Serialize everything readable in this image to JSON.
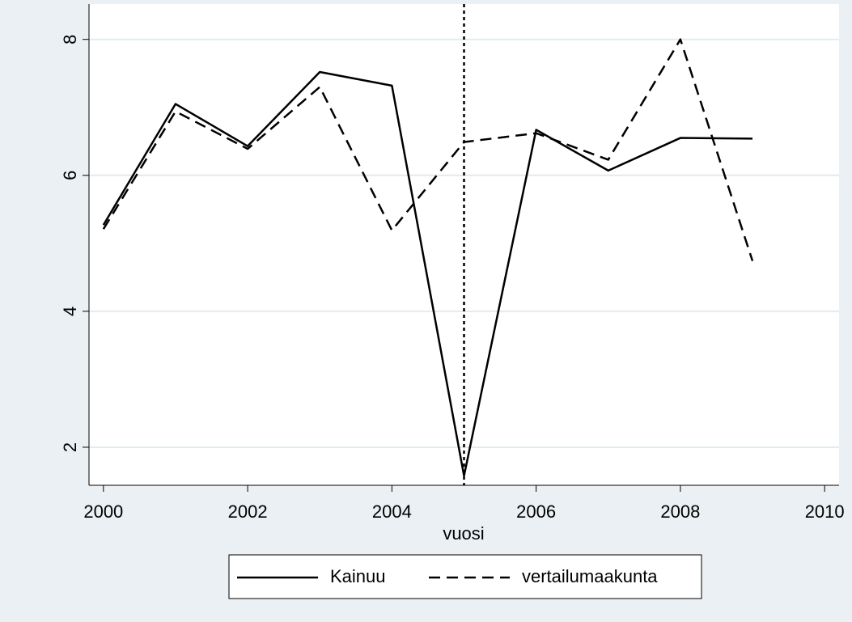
{
  "chart_data": {
    "type": "line",
    "x_label": "vuosi",
    "x": [
      2000,
      2001,
      2002,
      2003,
      2004,
      2005,
      2006,
      2007,
      2008,
      2009
    ],
    "series": [
      {
        "name": "Kainuu",
        "color": "#000000",
        "line_style": "solid",
        "values": [
          5.27,
          7.05,
          6.43,
          7.52,
          7.32,
          1.58,
          6.67,
          6.07,
          6.55,
          6.54
        ]
      },
      {
        "name": "vertailumaakunta",
        "color": "#000000",
        "line_style": "dash",
        "values": [
          5.21,
          6.94,
          6.39,
          7.3,
          5.19,
          6.49,
          6.62,
          6.23,
          8.0,
          4.74
        ]
      }
    ],
    "xline": 2005,
    "xlim": [
      1999.8,
      2010.2
    ],
    "xticks": [
      2000,
      2002,
      2004,
      2006,
      2008,
      2010
    ],
    "ylim": [
      1.44,
      8.52
    ],
    "yticks": [
      2,
      4,
      6,
      8
    ],
    "grid": true,
    "legend": "bottom"
  }
}
